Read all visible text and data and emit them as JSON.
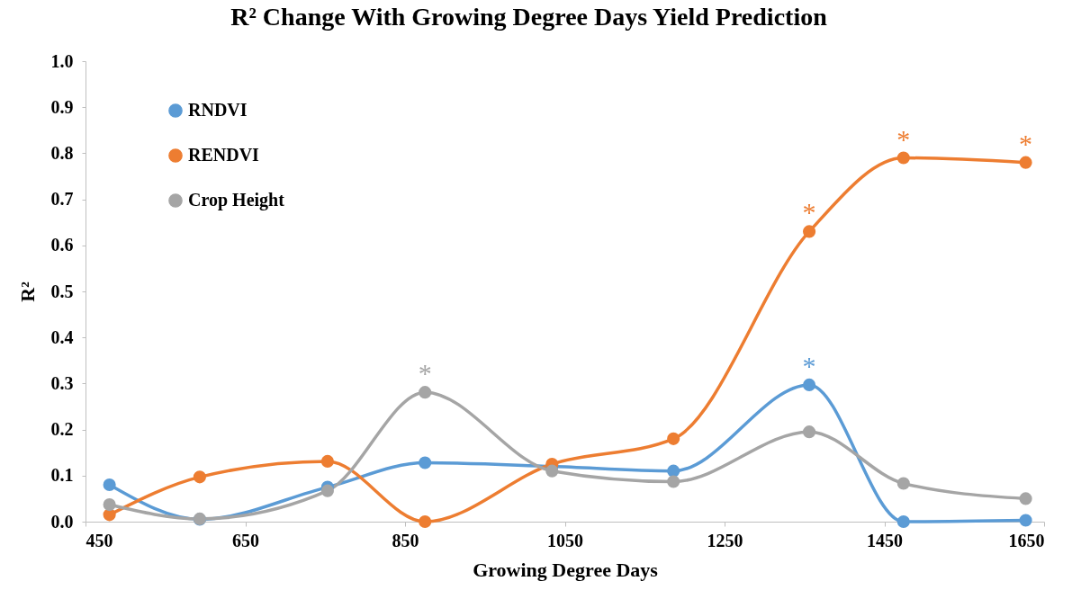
{
  "chart_data": {
    "type": "line",
    "title": "R² Change With Growing Degree Days Yield Prediction",
    "xlabel": "Growing Degree Days",
    "ylabel": "R²",
    "x": [
      480,
      593,
      753,
      875,
      1034,
      1186,
      1356,
      1474,
      1627
    ],
    "series": [
      {
        "name": "RNDVI",
        "color": "#5b9bd5",
        "values": [
          0.08,
          0.005,
          0.075,
          0.128,
          0.12,
          0.11,
          0.297,
          0.0,
          0.003
        ]
      },
      {
        "name": "RENDVI",
        "color": "#ed7d31",
        "values": [
          0.015,
          0.097,
          0.131,
          0.0,
          0.125,
          0.18,
          0.63,
          0.79,
          0.78
        ]
      },
      {
        "name": "Crop Height",
        "color": "#a5a5a5",
        "values": [
          0.037,
          0.006,
          0.067,
          0.281,
          0.11,
          0.087,
          0.195,
          0.083,
          0.05
        ]
      }
    ],
    "xlim": [
      450,
      1650
    ],
    "xticks": [
      450,
      650,
      850,
      1050,
      1250,
      1450,
      1650
    ],
    "ylim": [
      0,
      1
    ],
    "yticks": [
      {
        "value": 0,
        "label": "0.0"
      },
      0.1,
      0.2,
      0.3,
      0.4,
      0.5,
      0.6,
      0.7,
      0.8,
      0.9,
      {
        "value": 1,
        "label": "1.0"
      }
    ],
    "annotations": [
      {
        "text": "*",
        "x": 875,
        "y": 0.281
      },
      {
        "text": "*",
        "x": 1356,
        "y": 0.63
      },
      {
        "text": "*",
        "x": 1474,
        "y": 0.79
      },
      {
        "text": "*",
        "x": 1627,
        "y": 0.78
      },
      {
        "text": "*",
        "x": 1356,
        "y": 0.297
      }
    ],
    "grid": false,
    "legend": "top left",
    "marker": "circle",
    "line_style": "solid"
  }
}
